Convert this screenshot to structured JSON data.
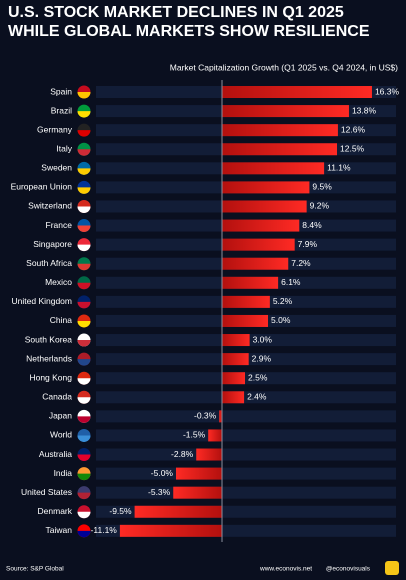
{
  "chart_data": {
    "type": "bar",
    "orientation": "horizontal",
    "title": [
      "U.S. STOCK MARKET DECLINES IN Q1 2025",
      "WHILE GLOBAL MARKETS SHOW RESILIENCE"
    ],
    "subtitle": "Market Capitalization Growth (Q1 2025 vs. Q4 2024, in US$)",
    "categories": [
      "Spain",
      "Brazil",
      "Germany",
      "Italy",
      "Sweden",
      "European Union",
      "Switzerland",
      "France",
      "Singapore",
      "South Africa",
      "Mexico",
      "United Kingdom",
      "China",
      "South Korea",
      "Netherlands",
      "Hong Kong",
      "Canada",
      "Japan",
      "World",
      "Australia",
      "India",
      "United States",
      "Denmark",
      "Taiwan"
    ],
    "values": [
      16.3,
      13.8,
      12.6,
      12.5,
      11.1,
      9.5,
      9.2,
      8.4,
      7.9,
      7.2,
      6.1,
      5.2,
      5.0,
      3.0,
      2.9,
      2.5,
      2.4,
      -0.3,
      -1.5,
      -2.8,
      -5.0,
      -5.3,
      -9.5,
      -11.1
    ],
    "value_labels": [
      "16.3%",
      "13.8%",
      "12.6%",
      "12.5%",
      "11.1%",
      "9.5%",
      "9.2%",
      "8.4%",
      "7.9%",
      "7.2%",
      "6.1%",
      "5.2%",
      "5.0%",
      "3.0%",
      "2.9%",
      "2.5%",
      "2.4%",
      "-0.3%",
      "-1.5%",
      "-2.8%",
      "-5.0%",
      "-5.3%",
      "-9.5%",
      "-11.1%"
    ],
    "color": "#e8201c",
    "source": "Source: S&P Global",
    "website": "www.econovis.net",
    "handle": "@econovisuals"
  }
}
